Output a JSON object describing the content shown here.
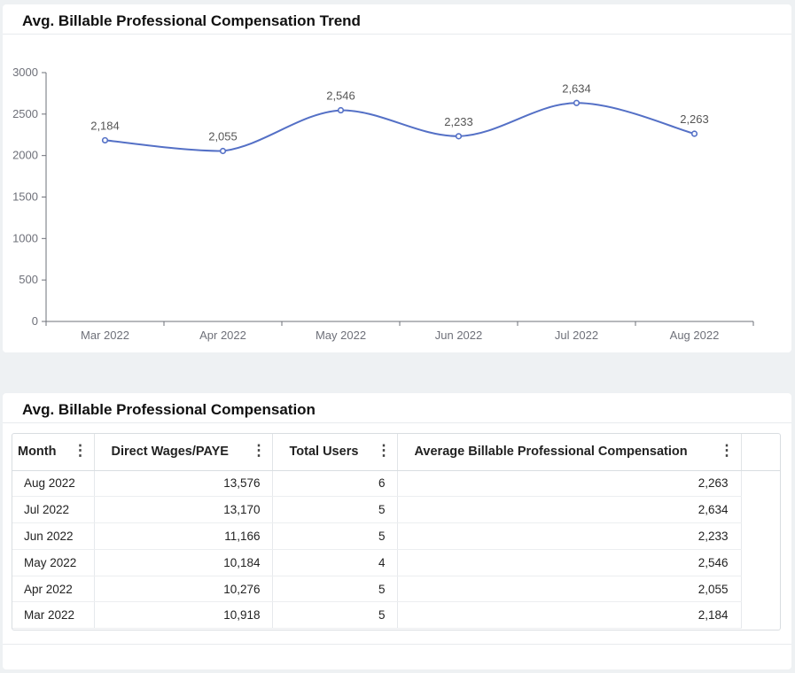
{
  "trend": {
    "title": "Avg. Billable Professional Compensation Trend"
  },
  "chart_data": {
    "type": "line",
    "smooth": true,
    "categories": [
      "Mar 2022",
      "Apr 2022",
      "May 2022",
      "Jun 2022",
      "Jul 2022",
      "Aug 2022"
    ],
    "values": [
      2184,
      2055,
      2546,
      2233,
      2634,
      2263
    ],
    "value_labels": [
      "2,184",
      "2,055",
      "2,546",
      "2,233",
      "2,634",
      "2,263"
    ],
    "yticks": [
      0,
      500,
      1000,
      1500,
      2000,
      2500,
      3000
    ],
    "ylim": [
      0,
      3000
    ],
    "grid": false,
    "color": "#5470c6"
  },
  "table": {
    "title": "Avg. Billable Professional Compensation",
    "columns": [
      "Month",
      "Direct Wages/PAYE",
      "Total Users",
      "Average Billable Professional Compensation"
    ],
    "menu_icon": "vertical-ellipsis-icon",
    "rows": [
      [
        "Aug 2022",
        "13,576",
        "6",
        "2,263"
      ],
      [
        "Jul 2022",
        "13,170",
        "5",
        "2,634"
      ],
      [
        "Jun 2022",
        "11,166",
        "5",
        "2,233"
      ],
      [
        "May 2022",
        "10,184",
        "4",
        "2,546"
      ],
      [
        "Apr 2022",
        "10,276",
        "5",
        "2,055"
      ],
      [
        "Mar 2022",
        "10,918",
        "5",
        "2,184"
      ]
    ]
  }
}
